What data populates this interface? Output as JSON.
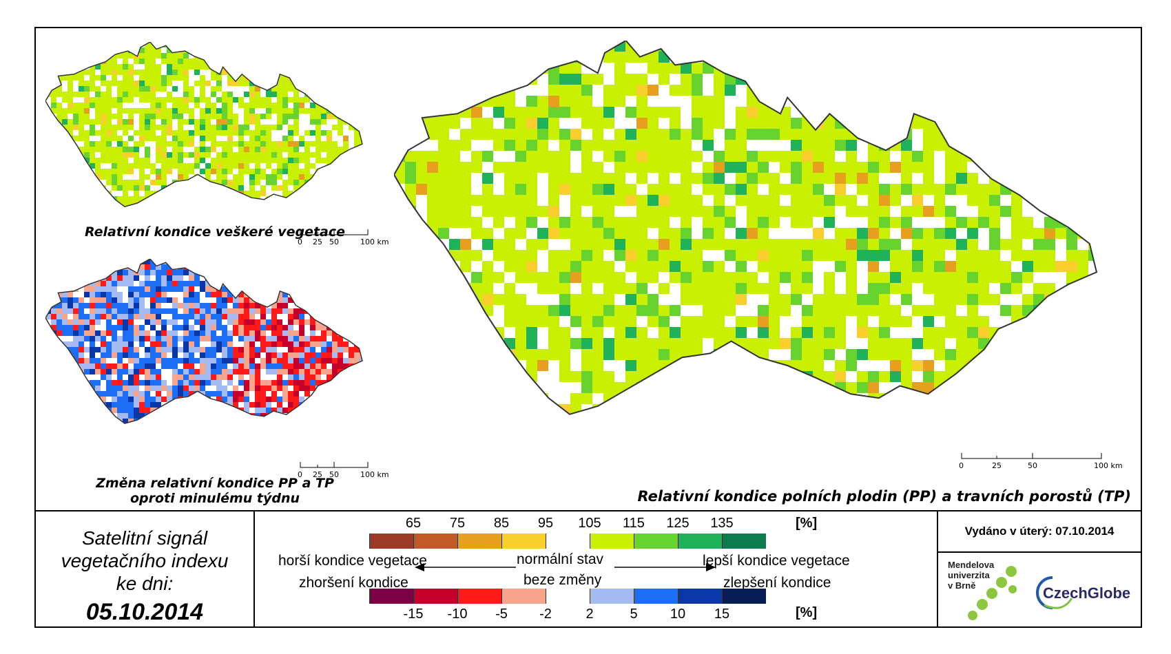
{
  "maps": {
    "main_caption": "Relativní kondice polních plodin (PP) a travních porostů (TP)",
    "top_left_caption": "Relativní kondice veškeré vegetace",
    "bottom_left_caption_line1": "Změna relativní kondice PP a TP",
    "bottom_left_caption_line2": "oproti minulému týdnu",
    "scale_small": [
      "0",
      "25",
      "50",
      "100 km"
    ],
    "scale_main": [
      "0",
      "25",
      "50",
      "100 km"
    ]
  },
  "date_panel": {
    "line1": "Satelitní signál",
    "line2": "vegetačního indexu",
    "line3": "ke dni:",
    "date": "05.10.2014"
  },
  "legend": {
    "condition_labels": [
      "65",
      "75",
      "85",
      "95",
      "105",
      "115",
      "125",
      "135"
    ],
    "condition_unit": "[%]",
    "condition_colors": [
      "#9a3a27",
      "#c15a26",
      "#e6a01f",
      "#f8cf2d",
      "#ffffff",
      "#c9f000",
      "#66d32f",
      "#20b25a",
      "#0d7a4e"
    ],
    "change_labels": [
      "-15",
      "-10",
      "-5",
      "-2",
      "2",
      "5",
      "10",
      "15"
    ],
    "change_unit": "[%]",
    "change_colors": [
      "#7a0043",
      "#c5002a",
      "#ff1a1a",
      "#f8a58e",
      "#ffffff",
      "#a6baf2",
      "#1e6ef5",
      "#0a37a8",
      "#061d55"
    ],
    "worse_condition": "horší kondice vegetace",
    "worse_change": "zhoršení kondice",
    "normal_state": "normální stav",
    "no_change": "beze změny",
    "better_condition": "lepší kondice vegetace",
    "better_change": "zlepšení kondice"
  },
  "issue": {
    "text": "Vydáno v úterý: 07.10.2014",
    "logo_mendel_line1": "Mendelova",
    "logo_mendel_line2": "univerzita",
    "logo_mendel_line3": "v Brně",
    "logo_czechglobe": "CzechGlobe"
  }
}
